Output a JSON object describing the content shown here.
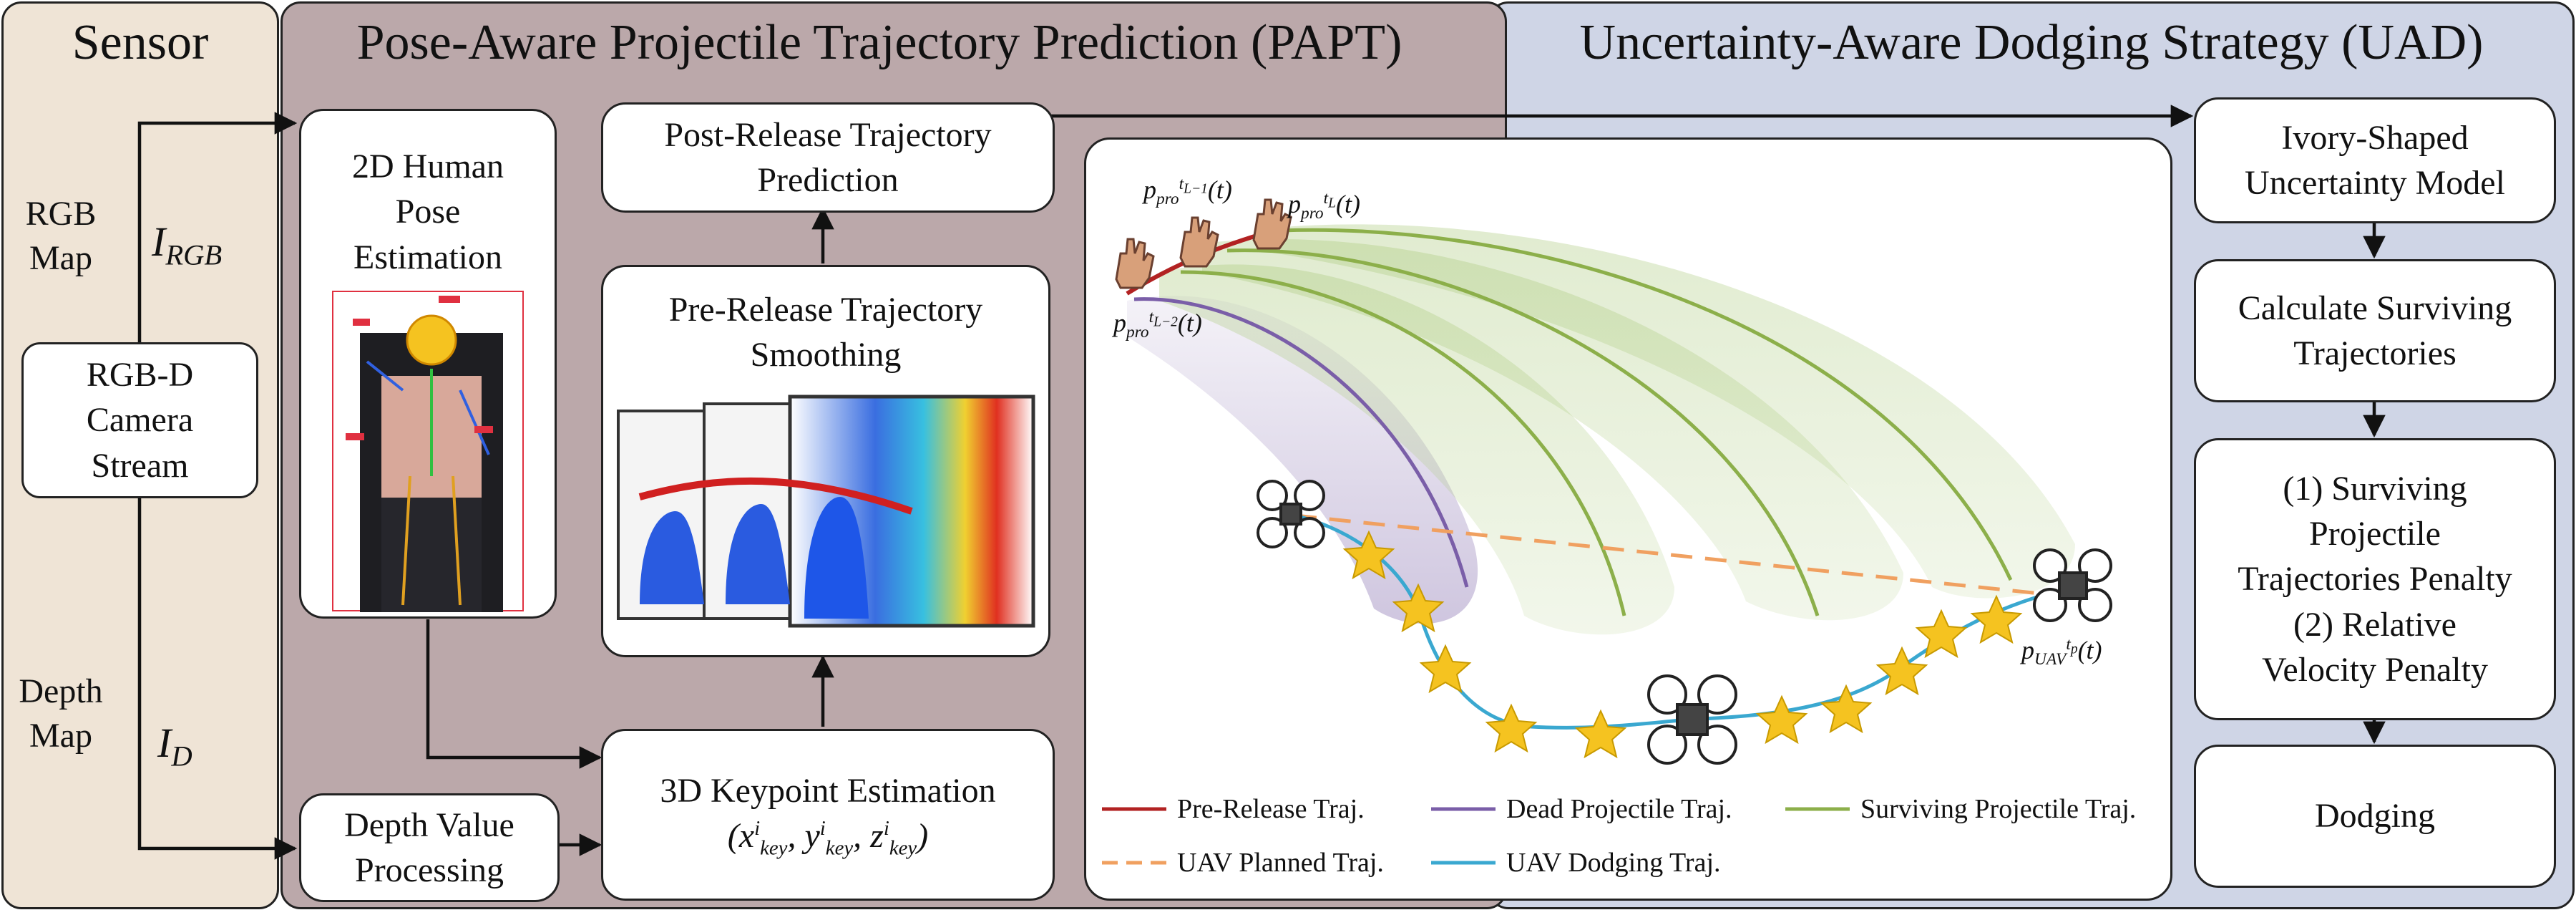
{
  "panels": {
    "sensor": {
      "title": "Sensor",
      "color": "#efe4d6"
    },
    "papt": {
      "title": "Pose-Aware Projectile Trajectory Prediction (PAPT)",
      "color": "#bba8aa"
    },
    "uad": {
      "title": "Uncertainty-Aware Dodging Strategy (UAD)",
      "color": "#cfd5e6"
    }
  },
  "sensor": {
    "rgb_map": [
      "RGB",
      "Map"
    ],
    "depth_map": [
      "Depth",
      "Map"
    ],
    "camera": [
      "RGB-D",
      "Camera",
      "Stream"
    ],
    "i_rgb": {
      "base": "I",
      "sub": "RGB"
    },
    "i_d": {
      "base": "I",
      "sub": "D"
    }
  },
  "papt": {
    "pose_estimation": [
      "2D Human",
      "Pose",
      "Estimation"
    ],
    "post_release": [
      "Post-Release Trajectory",
      "Prediction"
    ],
    "pre_release": [
      "Pre-Release Trajectory",
      "Smoothing"
    ],
    "keypoint": "3D Keypoint Estimation",
    "keypoint_formula": "(xⁱkey, yⁱkey, zⁱkey)",
    "depth_processing": [
      "Depth Value",
      "Processing"
    ]
  },
  "scene": {
    "labels": {
      "p_tL1": "p_pro^{t_{L-1}}(t)",
      "p_tL": "p_pro^{t_L}(t)",
      "p_tL2": "p_pro^{t_{L-2}}(t)",
      "p_uav": "p_UAV^{t_p}(t)"
    },
    "legend": {
      "pre_release": "Pre-Release Traj.",
      "dead": "Dead Projectile Traj.",
      "surviving": "Surviving Projectile Traj.",
      "planned": "UAV Planned Traj.",
      "dodging": "UAV Dodging Traj."
    },
    "colors": {
      "pre_release": "#b22222",
      "dead": "#7a5ea8",
      "surviving": "#8caf4a",
      "planned": "#f0a060",
      "dodging": "#3aa8d0",
      "star": "#f5c320"
    }
  },
  "uad": {
    "ivory": [
      "Ivory-Shaped",
      "Uncertainty Model"
    ],
    "calculate": [
      "Calculate Surviving",
      "Trajectories"
    ],
    "penalty": [
      "(1) Surviving",
      "Projectile",
      "Trajectories Penalty",
      "(2) Relative",
      "Velocity Penalty"
    ],
    "dodging": "Dodging"
  }
}
